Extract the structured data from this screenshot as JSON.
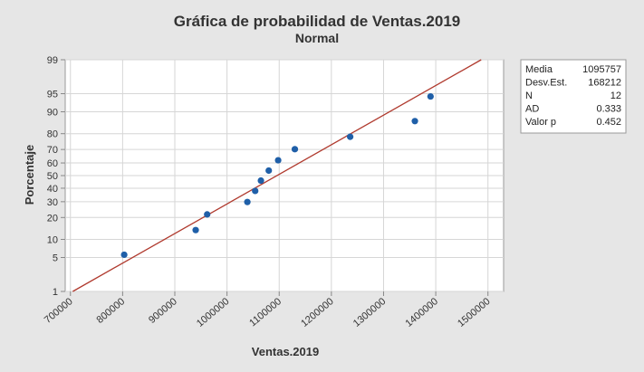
{
  "chart_data": {
    "type": "scatter",
    "title": "Gráfica de probabilidad de Ventas.2019",
    "subtitle": "Normal",
    "xlabel": "Ventas.2019",
    "ylabel": "Porcentaje",
    "xlim": [
      690000,
      1530000
    ],
    "x_ticks": [
      700000,
      800000,
      900000,
      1000000,
      1100000,
      1200000,
      1300000,
      1400000,
      1500000
    ],
    "x_tick_labels": [
      "700000",
      "800000",
      "900000",
      "1000000",
      "1100000",
      "1200000",
      "1300000",
      "1400000",
      "1500000"
    ],
    "y_scale": "normal-probability",
    "ylim": [
      1,
      99
    ],
    "y_ticks": [
      1,
      5,
      10,
      20,
      30,
      40,
      50,
      60,
      70,
      80,
      90,
      95,
      99
    ],
    "y_tick_labels": [
      "1",
      "5",
      "10",
      "20",
      "30",
      "40",
      "50",
      "60",
      "70",
      "80",
      "90",
      "95",
      "99"
    ],
    "grid": true,
    "points": [
      {
        "x": 803000,
        "y": 5.6
      },
      {
        "x": 940000,
        "y": 13.7
      },
      {
        "x": 962000,
        "y": 21.8
      },
      {
        "x": 1039000,
        "y": 29.8
      },
      {
        "x": 1054000,
        "y": 37.9
      },
      {
        "x": 1065000,
        "y": 46.0
      },
      {
        "x": 1080000,
        "y": 54.0
      },
      {
        "x": 1098000,
        "y": 62.1
      },
      {
        "x": 1130000,
        "y": 70.2
      },
      {
        "x": 1236000,
        "y": 78.2
      },
      {
        "x": 1360000,
        "y": 86.3
      },
      {
        "x": 1390000,
        "y": 94.4
      }
    ],
    "fit_line": {
      "mean": 1095757,
      "sd": 168212
    },
    "colors": {
      "points": "#1f5fa8",
      "fit_line": "#b03a2e",
      "grid": "#d6d6d6",
      "plot_bg": "#ffffff",
      "page_bg": "#e6e6e6"
    },
    "stats": [
      {
        "label": "Media",
        "value": "1095757"
      },
      {
        "label": "Desv.Est.",
        "value": "168212"
      },
      {
        "label": "N",
        "value": "12"
      },
      {
        "label": "AD",
        "value": "0.333"
      },
      {
        "label": "Valor p",
        "value": "0.452"
      }
    ]
  }
}
